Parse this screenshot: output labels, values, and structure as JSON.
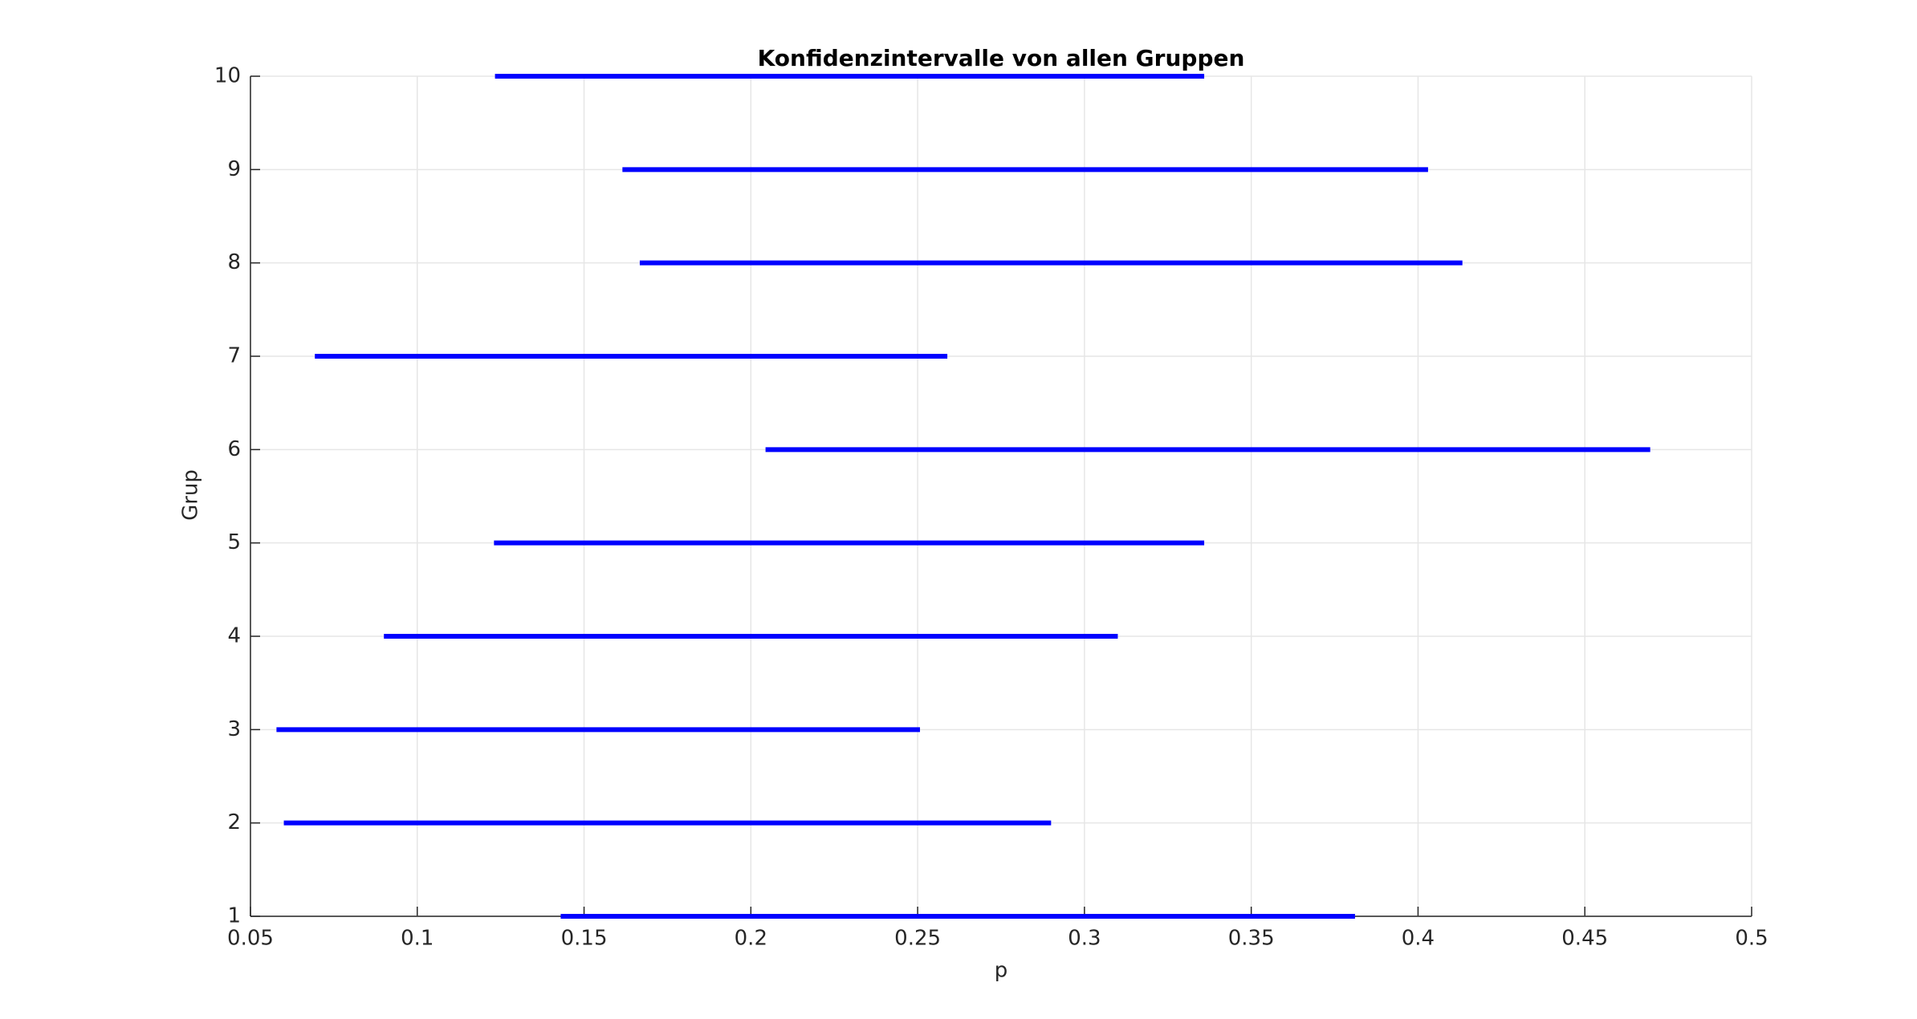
{
  "chart_data": {
    "type": "interval",
    "title": "Konfidenzintervalle von allen Gruppen",
    "x_label": "p",
    "y_label": "Grup",
    "y": [
      1,
      2,
      3,
      4,
      5,
      6,
      7,
      8,
      9,
      10
    ],
    "low": [
      0.143,
      0.06,
      0.0578,
      0.09,
      0.123,
      0.2044,
      0.0693,
      0.1667,
      0.1615,
      0.1233
    ],
    "high": [
      0.3811,
      0.29,
      0.2507,
      0.31,
      0.3359,
      0.4696,
      0.2589,
      0.4133,
      0.403,
      0.3359
    ],
    "color": "#0000ff",
    "xlim": [
      0.05,
      0.5
    ],
    "xticks": [
      0.05,
      0.1,
      0.15,
      0.2,
      0.25,
      0.3,
      0.35,
      0.4,
      0.45,
      0.5
    ],
    "ylim": [
      1,
      10
    ],
    "yticks": [
      1,
      2,
      3,
      4,
      5,
      6,
      7,
      8,
      9,
      10
    ],
    "grid": true
  }
}
